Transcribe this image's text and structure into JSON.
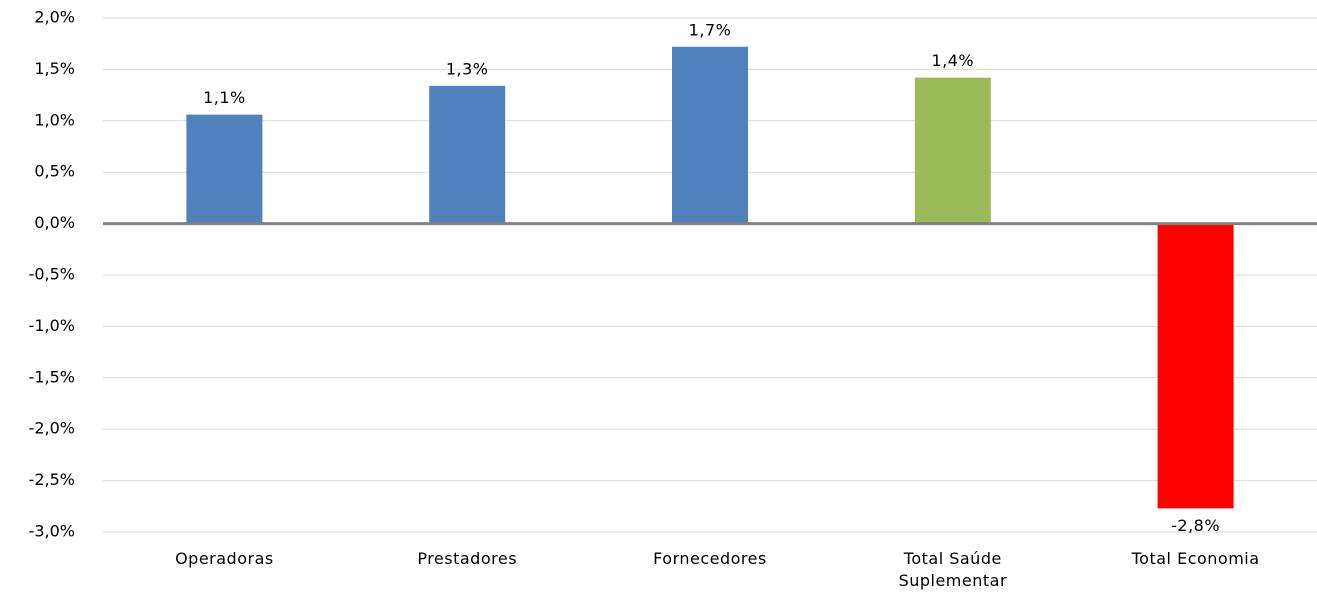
{
  "chart_data": {
    "type": "bar",
    "categories": [
      "Operadoras",
      "Prestadores",
      "Fornecedores",
      "Total Saúde Suplementar",
      "Total Economia"
    ],
    "values": [
      1.06,
      1.34,
      1.72,
      1.42,
      -2.77
    ],
    "value_labels": [
      "1,1%",
      "1,3%",
      "1,7%",
      "1,4%",
      "-2,8%"
    ],
    "colors": [
      "#4f81bd",
      "#4f81bd",
      "#4f81bd",
      "#9bbb59",
      "#ff0000"
    ],
    "ylim": [
      -3,
      2
    ],
    "yticks": [
      {
        "value": -3,
        "label": "-3,0%"
      },
      {
        "value": -2.5,
        "label": "-2,5%"
      },
      {
        "value": -2,
        "label": "-2,0%"
      },
      {
        "value": -1.5,
        "label": "-1,5%"
      },
      {
        "value": -1,
        "label": "-1,0%"
      },
      {
        "value": -0.5,
        "label": "-0,5%"
      },
      {
        "value": 0,
        "label": "0,0%"
      },
      {
        "value": 0.5,
        "label": "0,5%"
      },
      {
        "value": 1,
        "label": "1,0%"
      },
      {
        "value": 1.5,
        "label": "1,5%"
      },
      {
        "value": 2,
        "label": "2,0%"
      }
    ],
    "grid": true
  }
}
